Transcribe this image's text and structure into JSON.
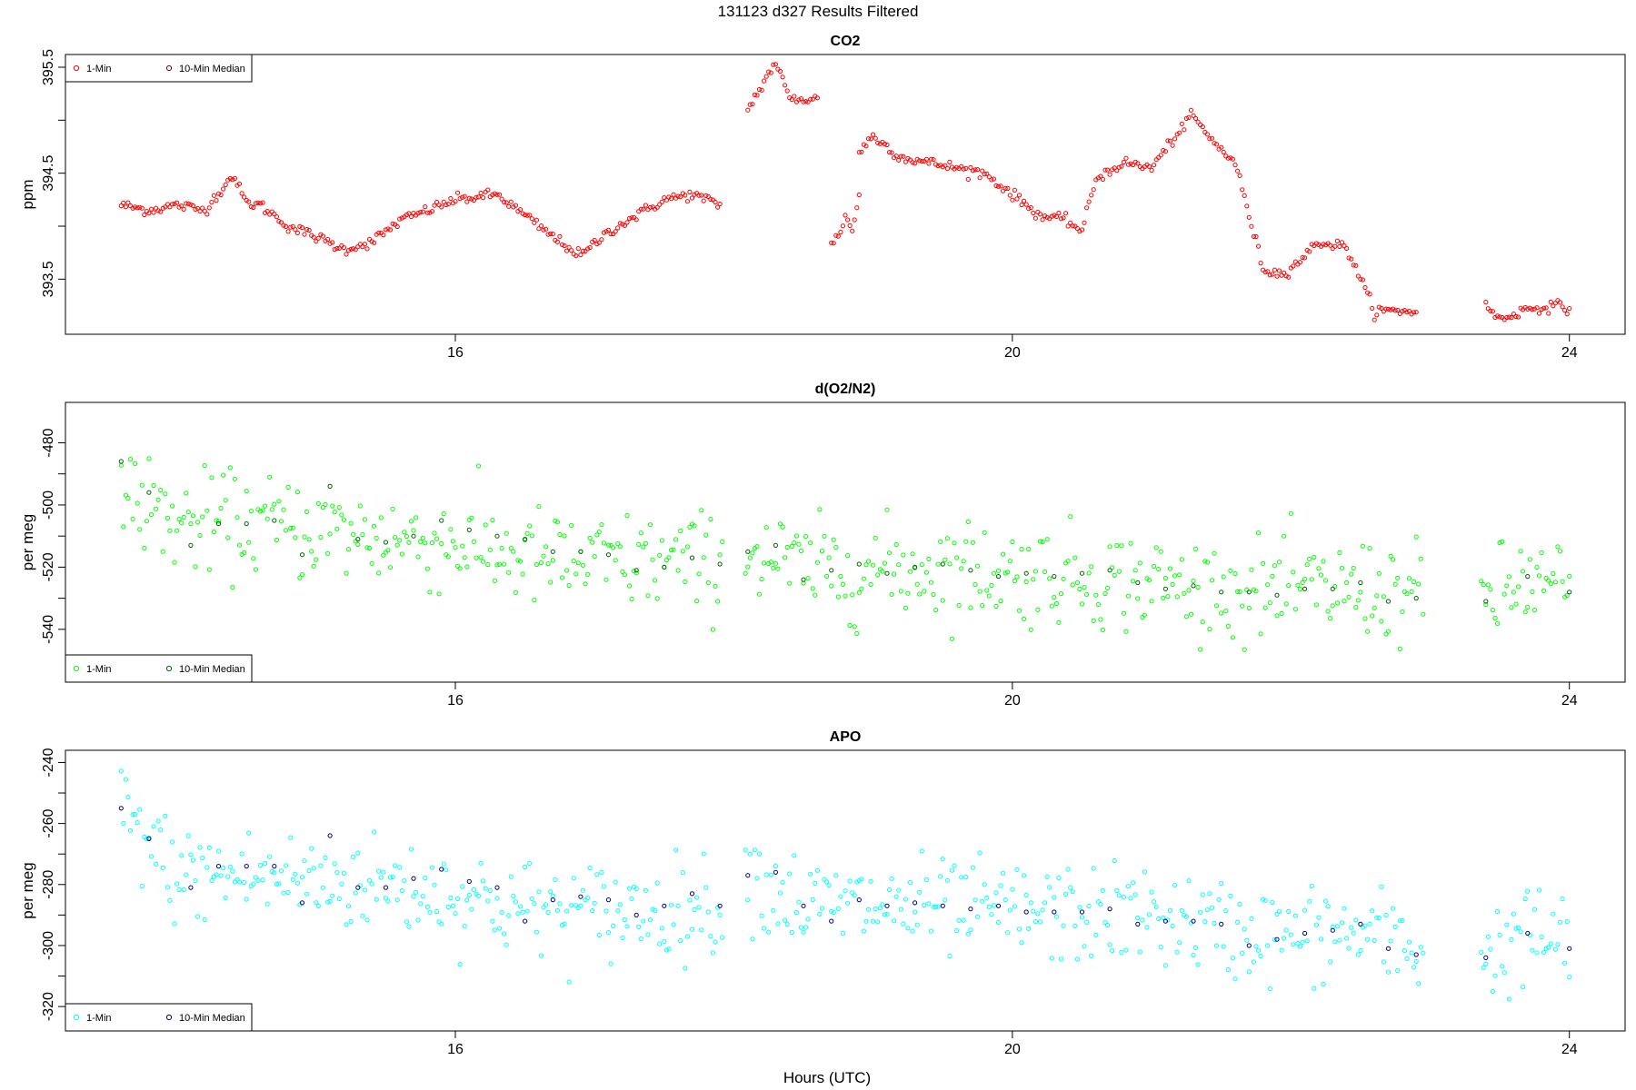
{
  "figure": {
    "title": "131123   d327   Results Filtered",
    "xlabel": "Hours (UTC)"
  },
  "chart_data": [
    {
      "type": "scatter",
      "title": "CO2",
      "xlabel": "",
      "ylabel": "ppm",
      "xlim": [
        13.2,
        24.4
      ],
      "ylim": [
        392.98,
        395.62
      ],
      "xticks": [
        "16",
        "20",
        "24"
      ],
      "yticks": [
        "393.5",
        "394.5",
        "395.5"
      ],
      "grid": false,
      "legend": "top-left",
      "series": [
        {
          "name": "1-Min",
          "color": "#ff0000",
          "segments": [
            {
              "x": [
                13.6,
                13.8,
                14.0,
                14.2,
                14.4,
                14.5,
                14.6,
                14.8,
                15.0,
                15.2,
                15.4,
                15.5,
                15.6,
                15.8,
                16.0,
                16.3,
                16.5,
                16.7,
                16.9,
                17.1,
                17.3,
                17.5,
                17.7,
                17.9
              ],
              "y": [
                394.2,
                394.15,
                394.2,
                394.15,
                394.48,
                394.22,
                394.2,
                394.0,
                393.9,
                393.78,
                393.85,
                393.95,
                394.05,
                394.15,
                394.25,
                394.3,
                394.1,
                393.9,
                393.72,
                393.95,
                394.1,
                394.25,
                394.3,
                394.2
              ]
            },
            {
              "x": [
                18.1,
                18.3,
                18.4,
                18.6
              ],
              "y": [
                395.1,
                395.55,
                395.2,
                395.2
              ]
            },
            {
              "x": [
                18.7,
                18.75,
                18.8,
                18.85,
                18.9
              ],
              "y": [
                393.85,
                393.9,
                394.1,
                393.95,
                394.3
              ]
            },
            {
              "x": [
                18.9,
                19.0,
                19.2,
                19.4,
                19.6,
                19.8,
                20.0,
                20.2,
                20.4,
                20.5,
                20.6,
                20.8,
                21.0,
                21.2,
                21.3,
                21.4,
                21.6,
                21.8,
                21.9,
                22.0,
                22.2,
                22.4,
                22.6,
                22.8,
                22.9
              ],
              "y": [
                394.7,
                394.85,
                394.65,
                394.6,
                394.55,
                394.5,
                394.3,
                394.1,
                394.05,
                393.95,
                394.45,
                394.6,
                394.55,
                394.9,
                395.05,
                394.85,
                394.6,
                393.6,
                393.55,
                393.6,
                393.85,
                393.8,
                393.2,
                393.2,
                393.2
              ]
            },
            {
              "x": [
                23.4,
                23.5,
                23.7,
                23.9,
                24.0
              ],
              "y": [
                393.25,
                393.12,
                393.22,
                393.25,
                393.22
              ]
            }
          ]
        },
        {
          "name": "10-Min Median",
          "color": "#8b0000",
          "x": [],
          "y": []
        }
      ]
    },
    {
      "type": "scatter",
      "title": "d(O2/N2)",
      "xlabel": "",
      "ylabel": "per meg",
      "xlim": [
        13.2,
        24.4
      ],
      "ylim": [
        -557,
        -467
      ],
      "xticks": [
        "16",
        "20",
        "24"
      ],
      "yticks": [
        "-480",
        "-500",
        "-520",
        "-540"
      ],
      "grid": false,
      "legend": "bottom-left",
      "series": [
        {
          "name": "1-Min",
          "color": "#00ff00",
          "trend": {
            "x": [
              13.6,
              14.0,
              14.5,
              15.0,
              15.5,
              16.0,
              16.5,
              17.0,
              17.5,
              17.9,
              18.1,
              18.5,
              19.0,
              19.5,
              20.0,
              20.5,
              21.0,
              21.5,
              22.0,
              22.5,
              22.9,
              23.4,
              23.7,
              24.0
            ],
            "y": [
              -495,
              -506,
              -506,
              -508,
              -511,
              -512,
              -517,
              -519,
              -518,
              -519,
              -514,
              -521,
              -521,
              -520,
              -522,
              -523,
              -525,
              -528,
              -528,
              -527,
              -529,
              -530,
              -525,
              -527
            ]
          },
          "scatter_sd": 8
        },
        {
          "name": "10-Min Median",
          "color": "#006400",
          "x": [
            13.6,
            13.8,
            14.1,
            14.3,
            14.5,
            14.7,
            14.9,
            15.1,
            15.3,
            15.5,
            15.7,
            15.9,
            16.1,
            16.3,
            16.5,
            16.7,
            16.9,
            17.1,
            17.3,
            17.5,
            17.7,
            17.9,
            18.1,
            18.3,
            18.5,
            18.7,
            18.9,
            19.1,
            19.3,
            19.5,
            19.7,
            19.9,
            20.1,
            20.3,
            20.5,
            20.7,
            20.9,
            21.1,
            21.3,
            21.5,
            21.7,
            21.9,
            22.1,
            22.3,
            22.5,
            22.7,
            22.9,
            23.4,
            23.7,
            24.0
          ],
          "y": [
            -486,
            -496,
            -513,
            -506,
            -506,
            -505,
            -516,
            -494,
            -511,
            -512,
            -510,
            -505,
            -508,
            -510,
            -511,
            -515,
            -515,
            -516,
            -521,
            -520,
            -517,
            -519,
            -515,
            -513,
            -524,
            -521,
            -519,
            -522,
            -520,
            -519,
            -521,
            -523,
            -522,
            -523,
            -522,
            -521,
            -525,
            -527,
            -526,
            -528,
            -528,
            -529,
            -527,
            -527,
            -525,
            -531,
            -530,
            -531,
            -523,
            -528
          ]
        }
      ]
    },
    {
      "type": "scatter",
      "title": "APO",
      "xlabel": "",
      "ylabel": "per meg",
      "xlim": [
        13.2,
        24.4
      ],
      "ylim": [
        -328,
        -236
      ],
      "xticks": [
        "16",
        "20",
        "24"
      ],
      "yticks": [
        "-240",
        "-260",
        "-280",
        "-300",
        "-320"
      ],
      "grid": false,
      "legend": "bottom-left",
      "series": [
        {
          "name": "1-Min",
          "color": "#00ffff",
          "trend": {
            "x": [
              13.6,
              14.0,
              14.5,
              15.0,
              15.5,
              16.0,
              16.5,
              17.0,
              17.5,
              17.9,
              18.1,
              18.5,
              19.0,
              19.5,
              20.0,
              20.5,
              21.0,
              21.5,
              22.0,
              22.5,
              22.9,
              23.4,
              23.7,
              24.0
            ],
            "y": [
              -256,
              -277,
              -277,
              -279,
              -280,
              -283,
              -288,
              -289,
              -288,
              -287,
              -276,
              -287,
              -287,
              -288,
              -289,
              -290,
              -290,
              -295,
              -297,
              -296,
              -301,
              -304,
              -296,
              -300
            ]
          },
          "scatter_sd": 8
        },
        {
          "name": "10-Min Median",
          "color": "#00008b",
          "x": [
            13.6,
            13.8,
            14.1,
            14.3,
            14.5,
            14.7,
            14.9,
            15.1,
            15.3,
            15.5,
            15.7,
            15.9,
            16.1,
            16.3,
            16.5,
            16.7,
            16.9,
            17.1,
            17.3,
            17.5,
            17.7,
            17.9,
            18.1,
            18.3,
            18.5,
            18.7,
            18.9,
            19.1,
            19.3,
            19.5,
            19.7,
            19.9,
            20.1,
            20.3,
            20.5,
            20.7,
            20.9,
            21.1,
            21.3,
            21.5,
            21.7,
            21.9,
            22.1,
            22.3,
            22.5,
            22.7,
            22.9,
            23.4,
            23.7,
            24.0
          ],
          "y": [
            -255,
            -265,
            -281,
            -274,
            -274,
            -274,
            -286,
            -264,
            -281,
            -281,
            -278,
            -275,
            -279,
            -281,
            -292,
            -285,
            -284,
            -285,
            -290,
            -287,
            -283,
            -287,
            -277,
            -276,
            -287,
            -292,
            -285,
            -287,
            -286,
            -287,
            -288,
            -287,
            -289,
            -289,
            -289,
            -288,
            -293,
            -292,
            -292,
            -293,
            -300,
            -298,
            -296,
            -295,
            -293,
            -301,
            -303,
            -304,
            -296,
            -301
          ]
        }
      ]
    }
  ]
}
